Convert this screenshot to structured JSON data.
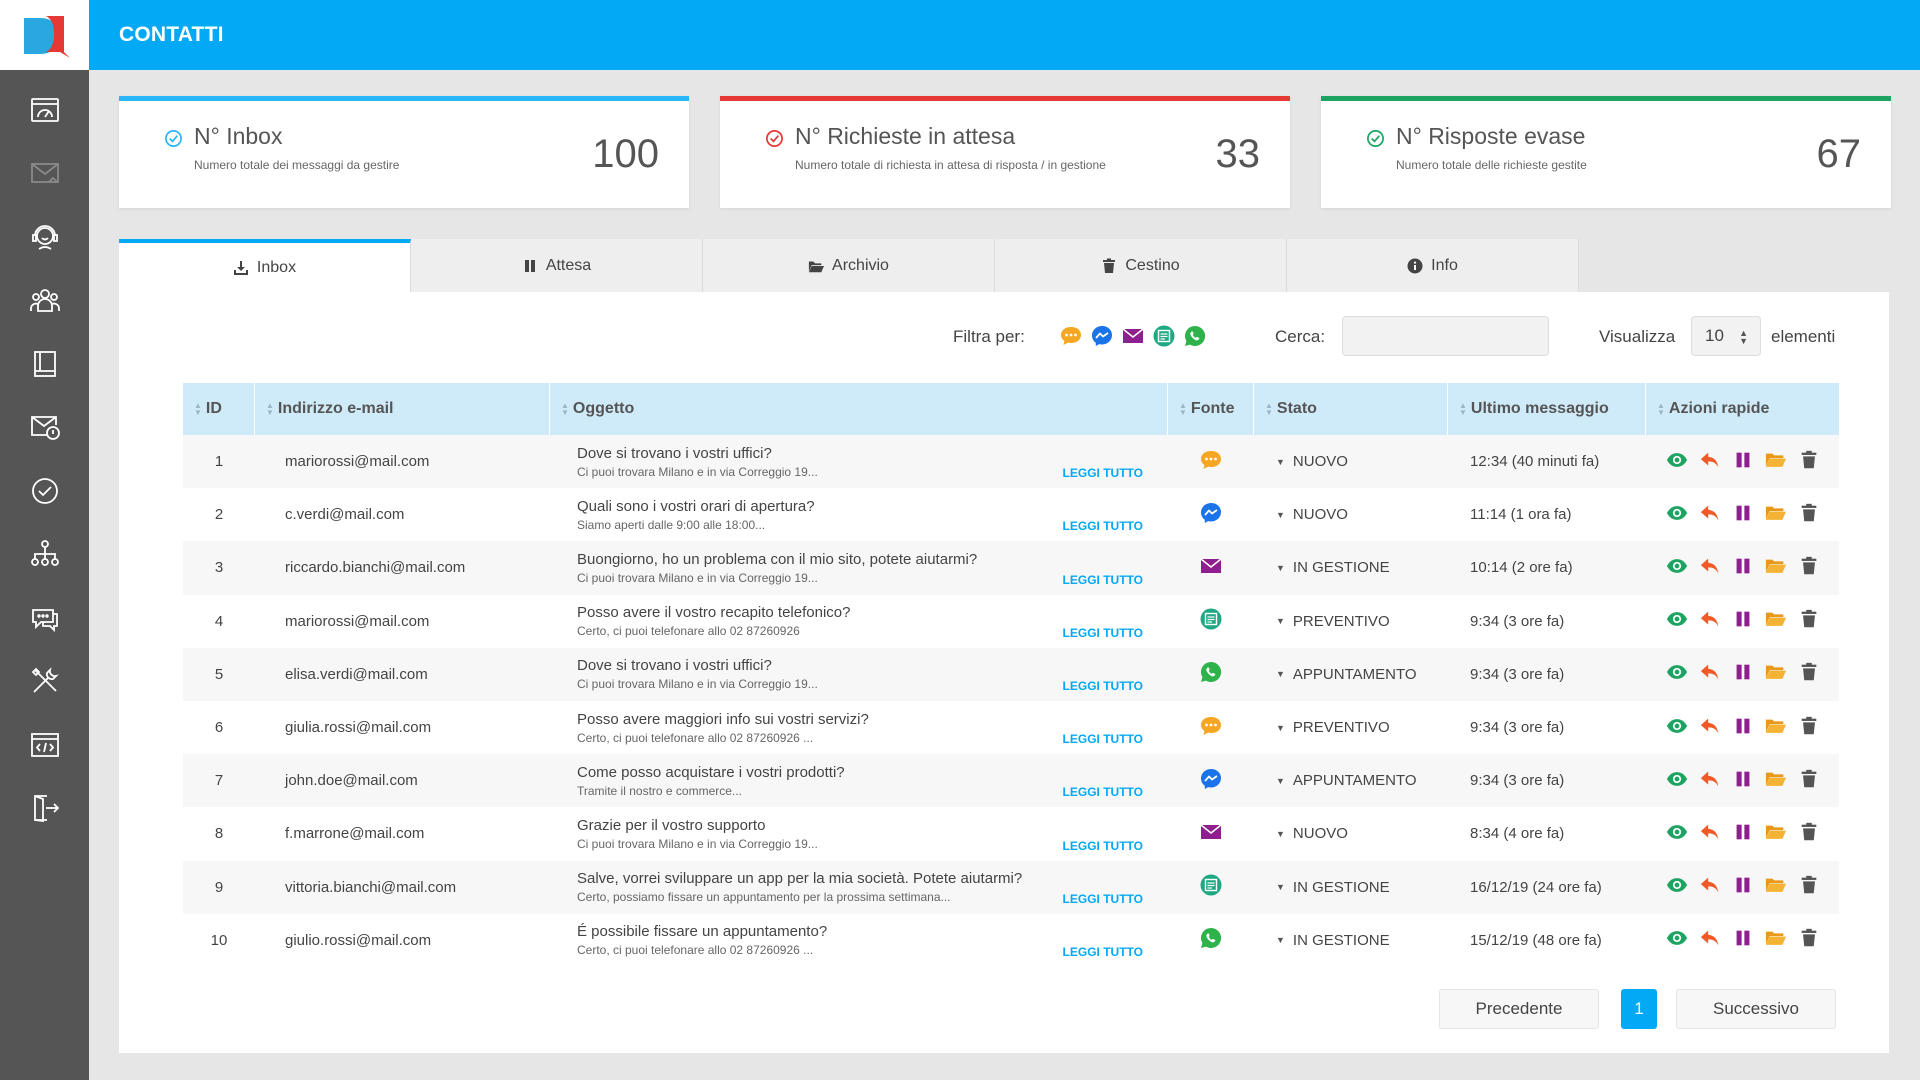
{
  "header": {
    "title": "CONTATTI"
  },
  "sidebar": {
    "items": [
      {
        "icon": "dashboard-icon"
      },
      {
        "icon": "mail-inbox-icon"
      },
      {
        "icon": "support-agent-icon"
      },
      {
        "icon": "users-group-icon"
      },
      {
        "icon": "book-icon"
      },
      {
        "icon": "mail-timer-icon"
      },
      {
        "icon": "check-circle-icon"
      },
      {
        "icon": "network-icon"
      },
      {
        "icon": "chat-icon"
      },
      {
        "icon": "tools-icon"
      },
      {
        "icon": "code-window-icon"
      },
      {
        "icon": "logout-icon"
      }
    ]
  },
  "cards": [
    {
      "title": "N° Inbox",
      "subtitle": "Numero totale dei messaggi da gestire",
      "value": "100",
      "color": "#29b6f6"
    },
    {
      "title": "N° Richieste in attesa",
      "subtitle": "Numero totale di richiesta in attesa di risposta / in gestione",
      "value": "33",
      "color": "#e53935"
    },
    {
      "title": "N° Risposte evase",
      "subtitle": "Numero totale delle richieste gestite",
      "value": "67",
      "color": "#1ea362"
    }
  ],
  "tabs": [
    {
      "label": "Inbox",
      "icon": "download-icon"
    },
    {
      "label": "Attesa",
      "icon": "pause-icon"
    },
    {
      "label": "Archivio",
      "icon": "folder-open-icon"
    },
    {
      "label": "Cestino",
      "icon": "trash-icon"
    },
    {
      "label": "Info",
      "icon": "info-icon"
    }
  ],
  "filters": {
    "label": "Filtra per:",
    "search_label": "Cerca:",
    "search_value": "",
    "show_label": "Visualizza",
    "show_value": "10",
    "elements_label": "elementi"
  },
  "table": {
    "headers": [
      "ID",
      "Indirizzo e-mail",
      "Oggetto",
      "Fonte",
      "Stato",
      "Ultimo messaggio",
      "Azioni rapide"
    ],
    "read_more": "LEGGI TUTTO",
    "rows": [
      {
        "id": "1",
        "email": "mariorossi@mail.com",
        "subject": "Dove si trovano i vostri uffici?",
        "preview": "Ci puoi trovara Milano e in via Correggio 19...",
        "source": "chat",
        "status": "NUOVO",
        "last": "12:34 (40 minuti fa)"
      },
      {
        "id": "2",
        "email": "c.verdi@mail.com",
        "subject": "Quali sono i vostri orari di apertura?",
        "preview": "Siamo aperti dalle 9:00 alle 18:00...",
        "source": "messenger",
        "status": "NUOVO",
        "last": "11:14 (1 ora fa)"
      },
      {
        "id": "3",
        "email": "riccardo.bianchi@mail.com",
        "subject": "Buongiorno, ho un problema con il mio sito, potete aiutarmi?",
        "preview": "Ci puoi trovara Milano e in via Correggio 19...",
        "source": "email",
        "status": "IN GESTIONE",
        "last": "10:14 (2 ore fa)"
      },
      {
        "id": "4",
        "email": "mariorossi@mail.com",
        "subject": "Posso avere il vostro recapito telefonico?",
        "preview": "Certo, ci puoi telefonare allo 02 87260926",
        "source": "form",
        "status": "PREVENTIVO",
        "last": "9:34 (3 ore fa)"
      },
      {
        "id": "5",
        "email": "elisa.verdi@mail.com",
        "subject": "Dove si trovano i vostri uffici?",
        "preview": "Ci puoi trovara Milano e in via Correggio 19...",
        "source": "whatsapp",
        "status": "APPUNTAMENTO",
        "last": "9:34 (3 ore fa)"
      },
      {
        "id": "6",
        "email": "giulia.rossi@mail.com",
        "subject": "Posso avere maggiori info sui vostri servizi?",
        "preview": "Certo, ci puoi telefonare allo 02 87260926 ...",
        "source": "chat",
        "status": "PREVENTIVO",
        "last": "9:34 (3 ore fa)"
      },
      {
        "id": "7",
        "email": "john.doe@mail.com",
        "subject": "Come posso acquistare i vostri prodotti?",
        "preview": "Tramite il nostro e commerce...",
        "source": "messenger",
        "status": "APPUNTAMENTO",
        "last": "9:34 (3 ore fa)"
      },
      {
        "id": "8",
        "email": "f.marrone@mail.com",
        "subject": "Grazie per il vostro supporto",
        "preview": "Ci puoi trovara Milano e in via Correggio 19...",
        "source": "email",
        "status": "NUOVO",
        "last": "8:34 (4 ore fa)"
      },
      {
        "id": "9",
        "email": "vittoria.bianchi@mail.com",
        "subject": "Salve, vorrei sviluppare un app per la mia società. Potete aiutarmi?",
        "preview": "Certo, possiamo fissare un appuntamento per la prossima settimana...",
        "source": "form",
        "status": "IN GESTIONE",
        "last": "16/12/19 (24 ore fa)"
      },
      {
        "id": "10",
        "email": "giulio.rossi@mail.com",
        "subject": "É possibile fissare un appuntamento?",
        "preview": "Certo, ci puoi telefonare allo 02 87260926 ...",
        "source": "whatsapp",
        "status": "IN GESTIONE",
        "last": "15/12/19 (48 ore fa)"
      }
    ]
  },
  "pagination": {
    "prev": "Precedente",
    "page": "1",
    "next": "Successivo"
  },
  "colors": {
    "accent": "#03a9f4",
    "chat": "#f5a623",
    "messenger": "#1a73e8",
    "email": "#8e1f8e",
    "form": "#20a884",
    "whatsapp": "#2db34a",
    "view": "#1ea362",
    "reply": "#f05a28",
    "pause": "#8e1f8e",
    "archive": "#f5a623",
    "delete": "#555555"
  }
}
